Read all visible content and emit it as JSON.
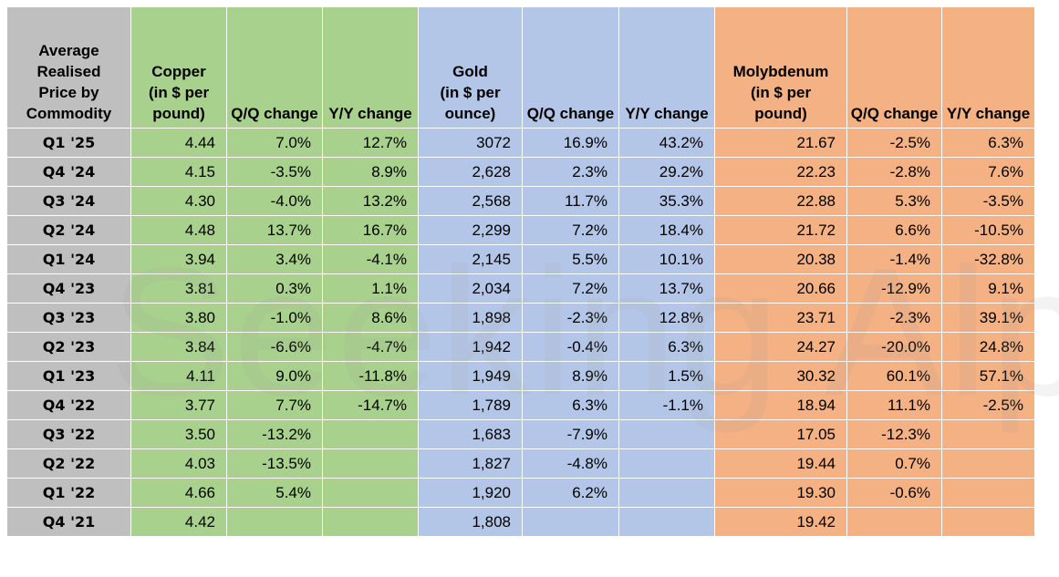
{
  "chart_data": {
    "type": "table",
    "title": "Average Realised Price by Commodity",
    "columns": [
      {
        "key": "period",
        "label": "Average Realised Price by Commodity",
        "group": "label"
      },
      {
        "key": "copper",
        "label": "Copper (in $ per pound)",
        "group": "copper"
      },
      {
        "key": "copper_qq",
        "label": "Q/Q change",
        "group": "copper"
      },
      {
        "key": "copper_yy",
        "label": "Y/Y change",
        "group": "copper"
      },
      {
        "key": "gold",
        "label": "Gold (in $ per ounce)",
        "group": "gold"
      },
      {
        "key": "gold_qq",
        "label": "Q/Q change",
        "group": "gold"
      },
      {
        "key": "gold_yy",
        "label": "Y/Y change",
        "group": "gold"
      },
      {
        "key": "moly",
        "label": "Molybdenum (in $ per pound)",
        "group": "moly"
      },
      {
        "key": "moly_qq",
        "label": "Q/Q change",
        "group": "moly"
      },
      {
        "key": "moly_yy",
        "label": "Y/Y change",
        "group": "moly"
      }
    ],
    "rows": [
      [
        "Q1 '25",
        "4.44",
        "7.0%",
        "12.7%",
        "3072",
        "16.9%",
        "43.2%",
        "21.67",
        "-2.5%",
        "6.3%"
      ],
      [
        "Q4 '24",
        "4.15",
        "-3.5%",
        "8.9%",
        "2,628",
        "2.3%",
        "29.2%",
        "22.23",
        "-2.8%",
        "7.6%"
      ],
      [
        "Q3 '24",
        "4.30",
        "-4.0%",
        "13.2%",
        "2,568",
        "11.7%",
        "35.3%",
        "22.88",
        "5.3%",
        "-3.5%"
      ],
      [
        "Q2 '24",
        "4.48",
        "13.7%",
        "16.7%",
        "2,299",
        "7.2%",
        "18.4%",
        "21.72",
        "6.6%",
        "-10.5%"
      ],
      [
        "Q1 '24",
        "3.94",
        "3.4%",
        "-4.1%",
        "2,145",
        "5.5%",
        "10.1%",
        "20.38",
        "-1.4%",
        "-32.8%"
      ],
      [
        "Q4 '23",
        "3.81",
        "0.3%",
        "1.1%",
        "2,034",
        "7.2%",
        "13.7%",
        "20.66",
        "-12.9%",
        "9.1%"
      ],
      [
        "Q3 '23",
        "3.80",
        "-1.0%",
        "8.6%",
        "1,898",
        "-2.3%",
        "12.8%",
        "23.71",
        "-2.3%",
        "39.1%"
      ],
      [
        "Q2 '23",
        "3.84",
        "-6.6%",
        "-4.7%",
        "1,942",
        "-0.4%",
        "6.3%",
        "24.27",
        "-20.0%",
        "24.8%"
      ],
      [
        "Q1 '23",
        "4.11",
        "9.0%",
        "-11.8%",
        "1,949",
        "8.9%",
        "1.5%",
        "30.32",
        "60.1%",
        "57.1%"
      ],
      [
        "Q4 '22",
        "3.77",
        "7.7%",
        "-14.7%",
        "1,789",
        "6.3%",
        "-1.1%",
        "18.94",
        "11.1%",
        "-2.5%"
      ],
      [
        "Q3 '22",
        "3.50",
        "-13.2%",
        "",
        "1,683",
        "-7.9%",
        "",
        "17.05",
        "-12.3%",
        ""
      ],
      [
        "Q2 '22",
        "4.03",
        "-13.5%",
        "",
        "1,827",
        "-4.8%",
        "",
        "19.44",
        "0.7%",
        ""
      ],
      [
        "Q1 '22",
        "4.66",
        "5.4%",
        "",
        "1,920",
        "6.2%",
        "",
        "19.30",
        "-0.6%",
        ""
      ],
      [
        "Q4 '21",
        "4.42",
        "",
        "",
        "1,808",
        "",
        "",
        "19.42",
        "",
        ""
      ]
    ]
  },
  "watermark": "Seeking Alpha",
  "colors": {
    "label": "#bfbfbf",
    "copper": "#a9d18e",
    "gold": "#b4c6e7",
    "moly": "#f4b183"
  }
}
